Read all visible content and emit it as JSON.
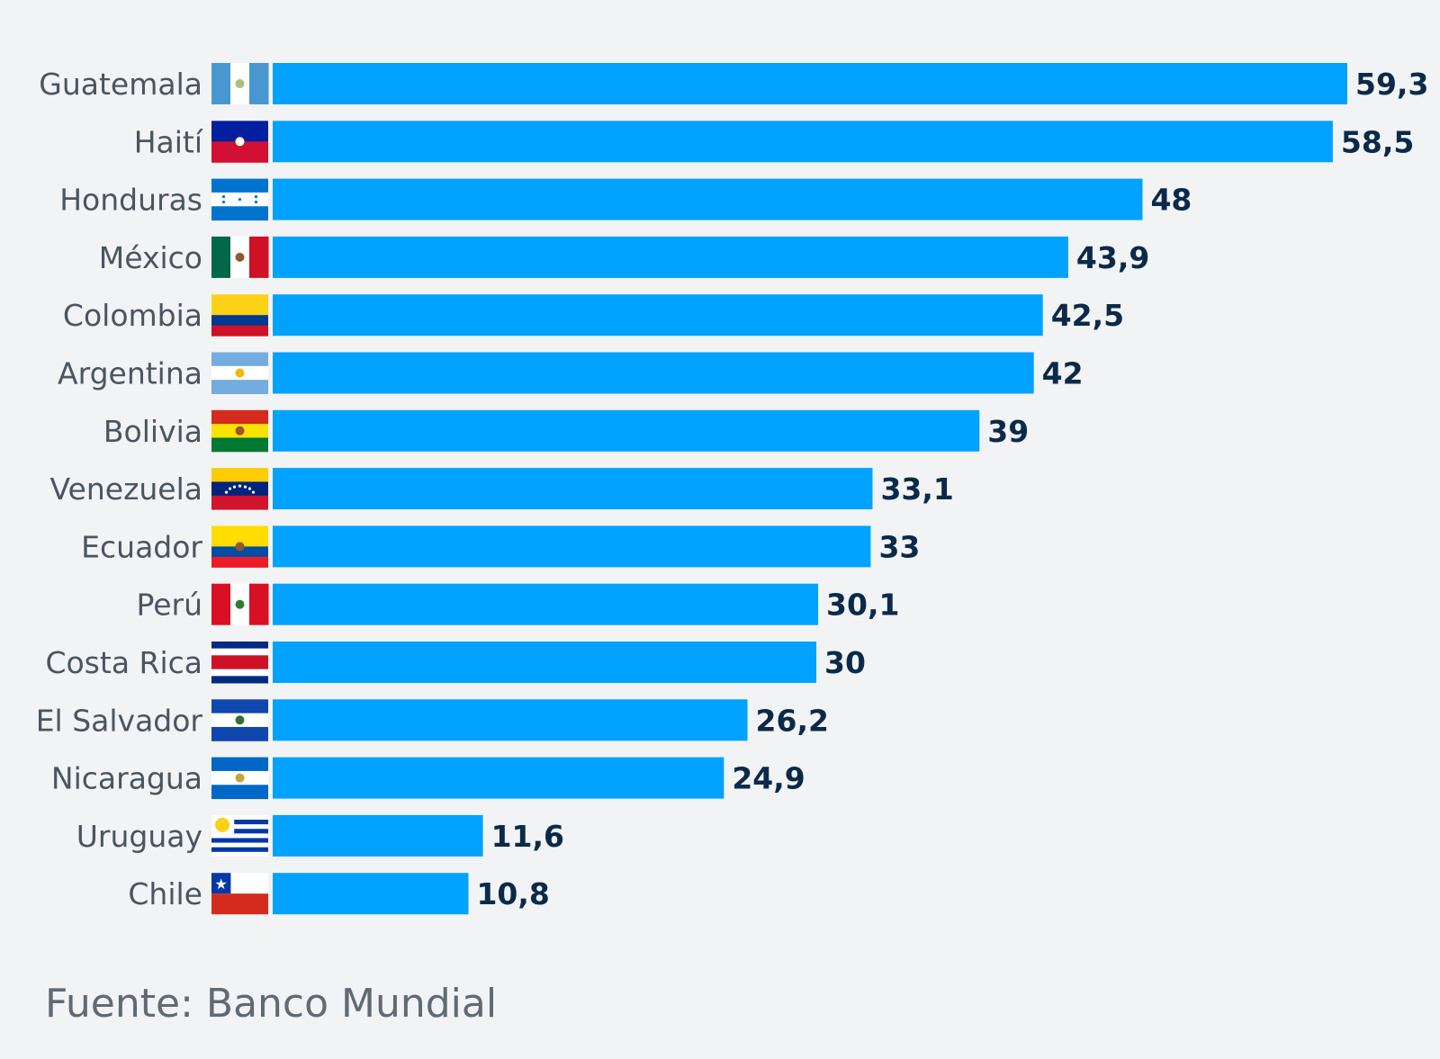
{
  "chart_data": {
    "type": "bar",
    "orientation": "horizontal",
    "title": "",
    "xlabel": "",
    "ylabel": "",
    "xlim": [
      0,
      59.3
    ],
    "grid": false,
    "bar_color": "#00a2ff",
    "value_label_color": "#0b2a4a",
    "categories": [
      "Guatemala",
      "Haití",
      "Honduras",
      "México",
      "Colombia",
      "Argentina",
      "Bolivia",
      "Venezuela",
      "Ecuador",
      "Perú",
      "Costa Rica",
      "El Salvador",
      "Nicaragua",
      "Uruguay",
      "Chile"
    ],
    "values": [
      59.3,
      58.5,
      48,
      43.9,
      42.5,
      42,
      39,
      33.1,
      33,
      30.1,
      30,
      26.2,
      24.9,
      11.6,
      10.8
    ],
    "value_labels": [
      "59,3",
      "58,5",
      "48",
      "43,9",
      "42,5",
      "42",
      "39",
      "33,1",
      "33",
      "30,1",
      "30",
      "26,2",
      "24,9",
      "11,6",
      "10,8"
    ],
    "flags": [
      {
        "icon": "guatemala-flag-icon",
        "layout": "v",
        "stripes": [
          "#4997d0",
          "#ffffff",
          "#4997d0"
        ],
        "emblem": "#a9c07a"
      },
      {
        "icon": "haiti-flag-icon",
        "layout": "h",
        "stripes": [
          "#00209f",
          "#d21034"
        ],
        "emblem": "#ffffff"
      },
      {
        "icon": "honduras-flag-icon",
        "layout": "h",
        "stripes": [
          "#0073cf",
          "#ffffff",
          "#0073cf"
        ],
        "emblem": "#0073cf"
      },
      {
        "icon": "mexico-flag-icon",
        "layout": "v",
        "stripes": [
          "#006847",
          "#ffffff",
          "#ce1126"
        ],
        "emblem": "#8c5a2b"
      },
      {
        "icon": "colombia-flag-icon",
        "layout": "h",
        "stripes": [
          "#fcd116",
          "#fcd116",
          "#003893",
          "#ce1126"
        ]
      },
      {
        "icon": "argentina-flag-icon",
        "layout": "h",
        "stripes": [
          "#74acdf",
          "#ffffff",
          "#74acdf"
        ],
        "emblem": "#f6b40e"
      },
      {
        "icon": "bolivia-flag-icon",
        "layout": "h",
        "stripes": [
          "#d52b1e",
          "#f9e300",
          "#007934"
        ],
        "emblem": "#a0522d"
      },
      {
        "icon": "venezuela-flag-icon",
        "layout": "h",
        "stripes": [
          "#ffcc00",
          "#00247d",
          "#cf142b"
        ],
        "emblem": "#ffffff"
      },
      {
        "icon": "ecuador-flag-icon",
        "layout": "h",
        "stripes": [
          "#ffdd00",
          "#ffdd00",
          "#034ea2",
          "#ed1c24"
        ],
        "emblem": "#8b5a2b"
      },
      {
        "icon": "peru-flag-icon",
        "layout": "v",
        "stripes": [
          "#d91023",
          "#ffffff",
          "#d91023"
        ],
        "emblem": "#2e7d32"
      },
      {
        "icon": "costa-rica-flag-icon",
        "layout": "h",
        "stripes": [
          "#002b7f",
          "#ffffff",
          "#ce1126",
          "#ce1126",
          "#ffffff",
          "#002b7f"
        ]
      },
      {
        "icon": "el-salvador-flag-icon",
        "layout": "h",
        "stripes": [
          "#0f47af",
          "#ffffff",
          "#0f47af"
        ],
        "emblem": "#3a6b35"
      },
      {
        "icon": "nicaragua-flag-icon",
        "layout": "h",
        "stripes": [
          "#0067c6",
          "#ffffff",
          "#0067c6"
        ],
        "emblem": "#c9a13b"
      },
      {
        "icon": "uruguay-flag-icon",
        "layout": "uy",
        "stripes": [
          "#ffffff",
          "#0038a8"
        ],
        "emblem": "#fcd116"
      },
      {
        "icon": "chile-flag-icon",
        "layout": "cl",
        "stripes": [
          "#ffffff",
          "#d52b1e",
          "#0039a6"
        ],
        "emblem": "#ffffff"
      }
    ]
  },
  "source": "Fuente: Banco Mundial"
}
